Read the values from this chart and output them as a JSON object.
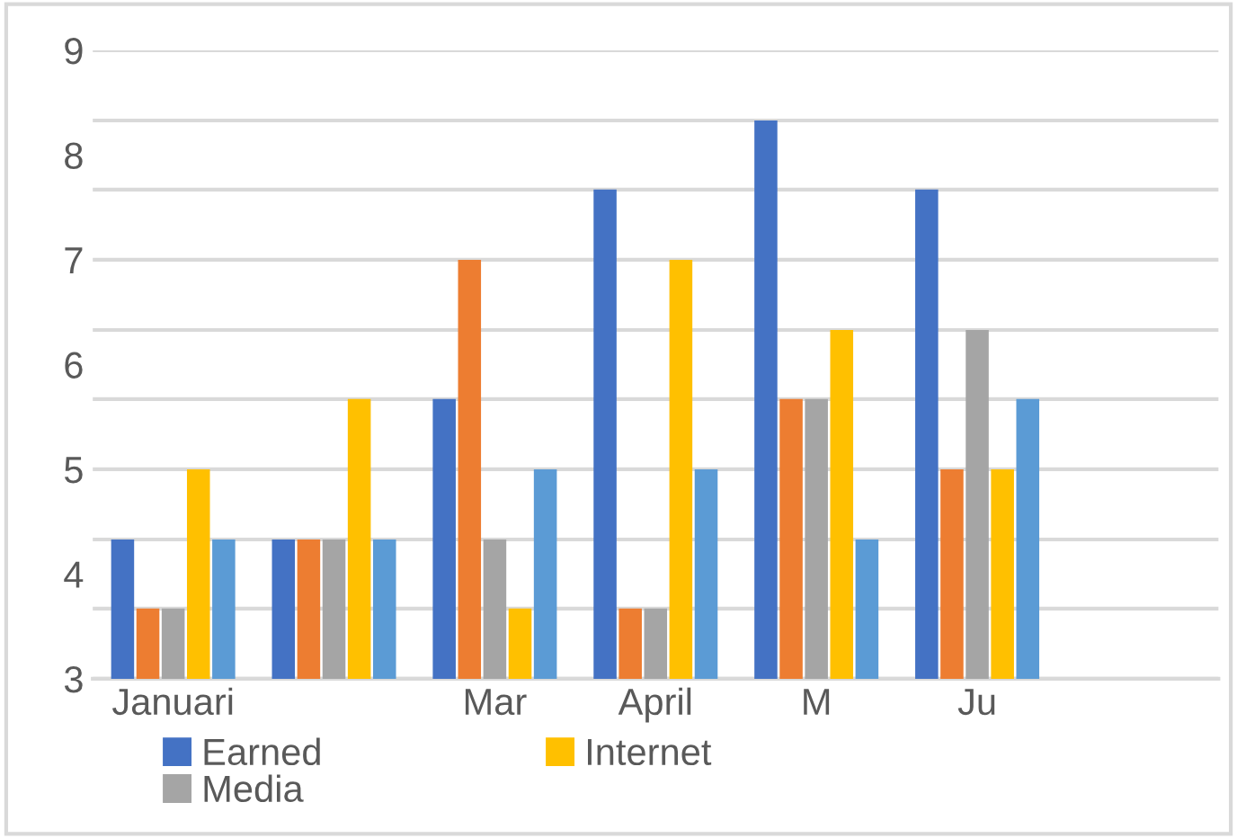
{
  "chart_data": {
    "type": "bar",
    "categories": [
      "Januari",
      null,
      "Mar",
      "April",
      "M",
      "Ju",
      null
    ],
    "series": [
      {
        "name": "Earned",
        "color": "#4472c4",
        "values": [
          4.33,
          4.33,
          5.67,
          7.67,
          8.33,
          7.67,
          null
        ]
      },
      {
        "color": "#ed7d31",
        "values": [
          3.67,
          4.33,
          7,
          3.67,
          5.67,
          5,
          null
        ]
      },
      {
        "name": "Media",
        "color": "#a5a5a5",
        "values": [
          3.67,
          4.33,
          4.33,
          3.67,
          5.67,
          6.33,
          null
        ]
      },
      {
        "name": "Internet",
        "color": "#ffc000",
        "values": [
          5,
          5.67,
          3.67,
          7,
          6.33,
          5,
          null
        ]
      },
      {
        "color": "#5b9bd5",
        "values": [
          4.33,
          4.33,
          5,
          5,
          4.33,
          5.67,
          null
        ]
      }
    ],
    "ylim": [
      3,
      9
    ],
    "yticks": [
      3,
      4,
      5,
      6,
      7,
      8,
      9,
      {
        "value": 3.67,
        "label": null
      },
      {
        "value": 4.33,
        "label": null
      },
      {
        "value": 5.67,
        "label": null
      },
      {
        "value": 6.33,
        "label": null
      },
      {
        "value": 7.67,
        "label": null
      },
      {
        "value": 8.33,
        "label": null
      }
    ],
    "grid": "y",
    "legend": "bottom"
  }
}
